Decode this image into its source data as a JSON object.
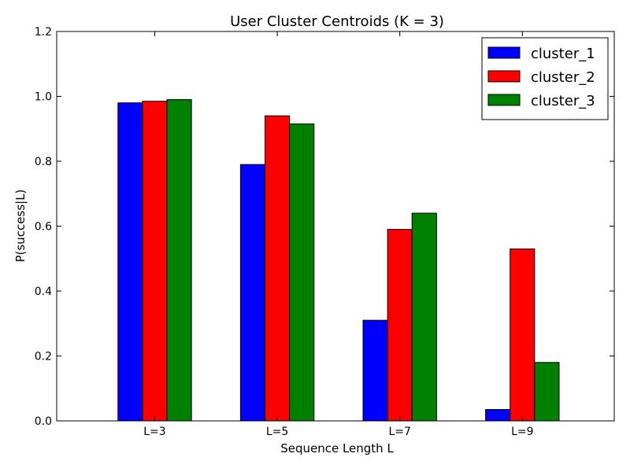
{
  "chart_data": {
    "type": "bar",
    "title": "User Cluster Centroids (K = 3)",
    "xlabel": "Sequence Length L",
    "ylabel": "P(success|L)",
    "categories": [
      "L=3",
      "L=5",
      "L=7",
      "L=9"
    ],
    "series": [
      {
        "name": "cluster_1",
        "color": "#0000ff",
        "values": [
          0.98,
          0.79,
          0.31,
          0.035
        ]
      },
      {
        "name": "cluster_2",
        "color": "#ff0000",
        "values": [
          0.985,
          0.94,
          0.59,
          0.53
        ]
      },
      {
        "name": "cluster_3",
        "color": "#008000",
        "values": [
          0.99,
          0.915,
          0.64,
          0.18
        ]
      }
    ],
    "ylim": [
      0,
      1.2
    ],
    "yticks": [
      "0.0",
      "0.2",
      "0.4",
      "0.6",
      "0.8",
      "1.0",
      "1.2"
    ],
    "grid": false,
    "legend_position": "top-right"
  }
}
